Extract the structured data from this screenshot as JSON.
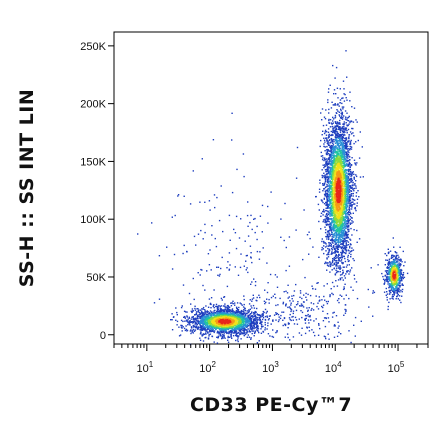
{
  "chart_data": {
    "type": "scatter",
    "subtype": "flow-cytometry-density-dot-plot",
    "title": "",
    "xlabel": "CD33 PE-Cy™7",
    "ylabel": "SS-H :: SS INT LIN",
    "x_scale": "log",
    "xlim": [
      3,
      300000
    ],
    "ylim": [
      -8000,
      262000
    ],
    "x_ticks": [
      {
        "value": 10,
        "label": "10",
        "exp": "1"
      },
      {
        "value": 100,
        "label": "10",
        "exp": "2"
      },
      {
        "value": 1000,
        "label": "10",
        "exp": "3"
      },
      {
        "value": 10000,
        "label": "10",
        "exp": "4"
      },
      {
        "value": 100000,
        "label": "10",
        "exp": "5"
      }
    ],
    "y_ticks": [
      {
        "value": 0,
        "label": "0"
      },
      {
        "value": 50000,
        "label": "50K"
      },
      {
        "value": 100000,
        "label": "100K"
      },
      {
        "value": 150000,
        "label": "150K"
      },
      {
        "value": 200000,
        "label": "200K"
      },
      {
        "value": 250000,
        "label": "250K"
      }
    ],
    "populations": [
      {
        "name": "",
        "center_x": 170,
        "center_y": 12000,
        "count": 2200
      },
      {
        "name": "",
        "center_x": 11000,
        "center_y": 125000,
        "count": 3600
      },
      {
        "name": "",
        "center_x": 85000,
        "center_y": 52000,
        "count": 650
      },
      {
        "name": "",
        "center_x": 3000,
        "center_y": 20000,
        "count": 280
      },
      {
        "name": "",
        "center_x": 200,
        "center_y": 60000,
        "count": 220
      }
    ],
    "color_scale": [
      "#1f3fbf",
      "#2a8fd6",
      "#22c4a0",
      "#8edb3c",
      "#f2e21a",
      "#f59a16",
      "#e8261c"
    ],
    "grid": false,
    "legend": "none"
  }
}
